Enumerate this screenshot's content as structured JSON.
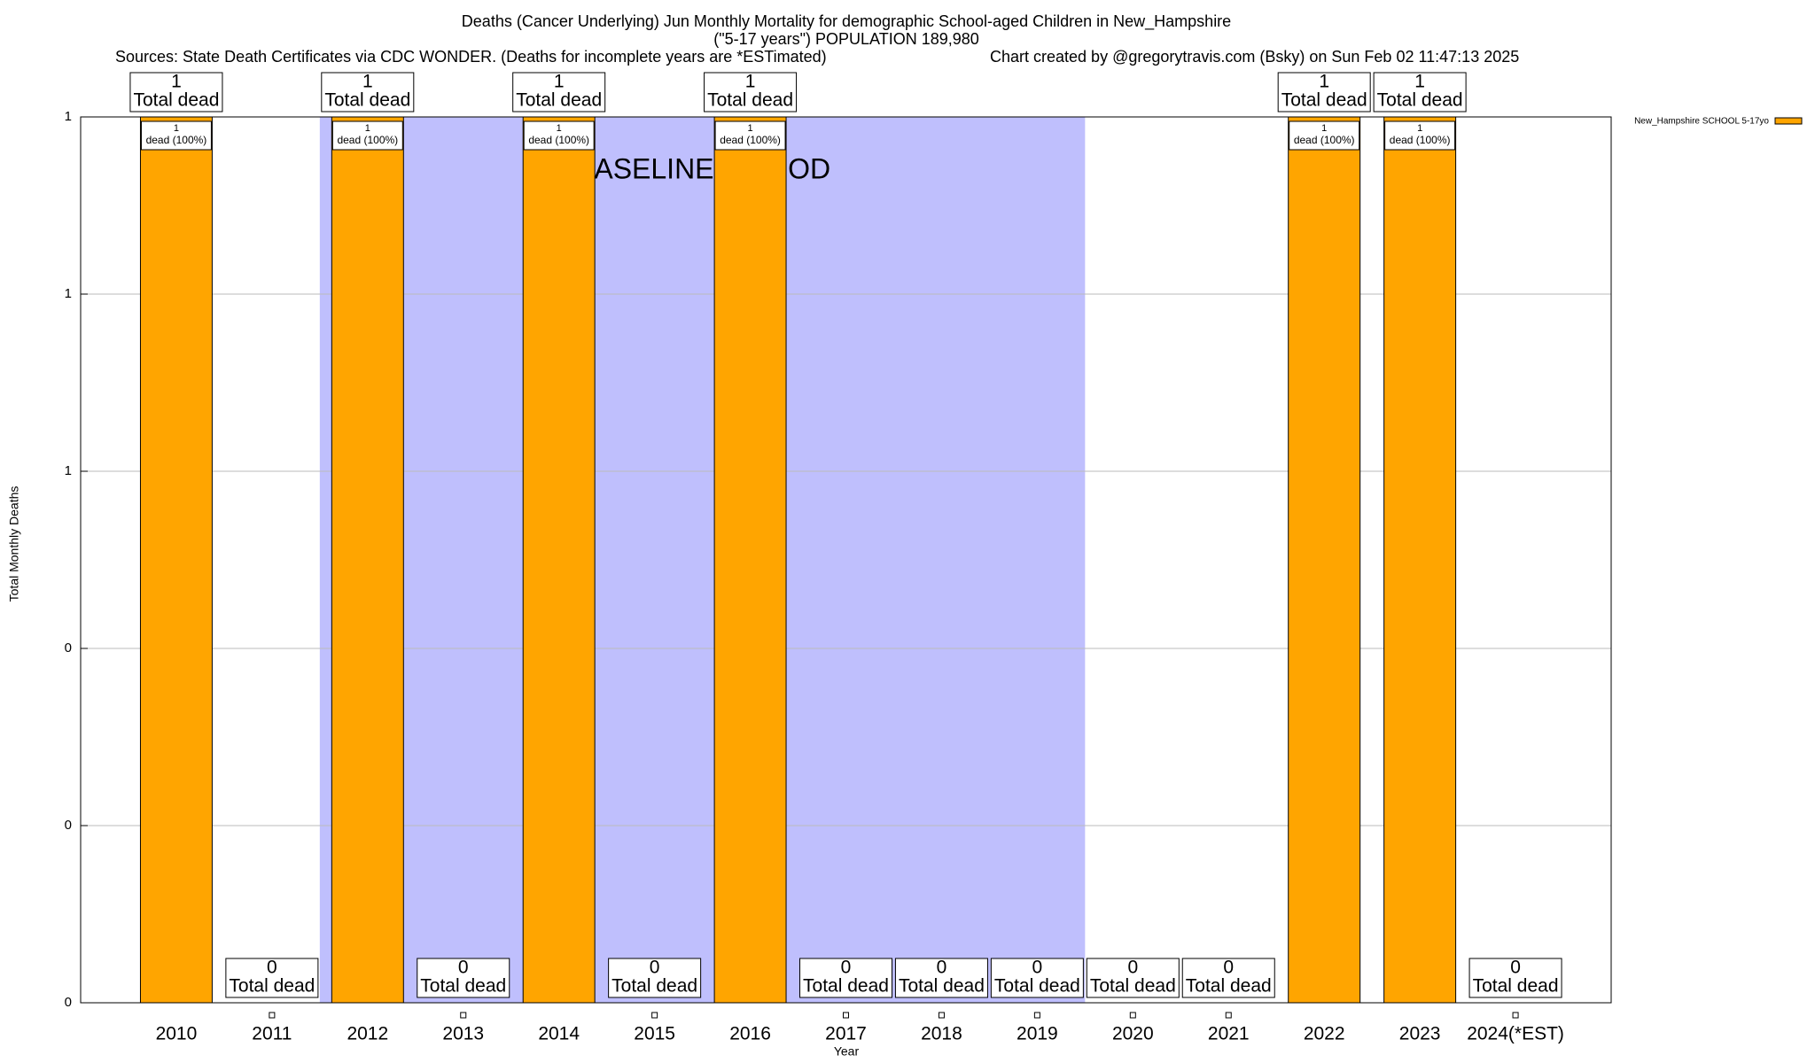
{
  "chart_data": {
    "type": "bar",
    "title": "Deaths (Cancer Underlying) Jun Monthly Mortality for demographic School-aged Children in New_Hampshire",
    "subtitle": "(\"5-17 years\") POPULATION 189,980",
    "source": "Sources: State Death Certificates via CDC WONDER. (Deaths for incomplete years are *ESTimated)",
    "credit": "Chart created by @gregorytravis.com (Bsky) on Sun Feb 02 11:47:13 2025",
    "xlabel": "Year",
    "ylabel": "Total Monthly Deaths",
    "categories": [
      "2010",
      "2011",
      "2012",
      "2013",
      "2014",
      "2015",
      "2016",
      "2017",
      "2018",
      "2019",
      "2020",
      "2021",
      "2022",
      "2023",
      "2024(*EST)"
    ],
    "series": [
      {
        "name": "New_Hampshire SCHOOL 5-17yo",
        "color": "#ffa500",
        "values": [
          1,
          0,
          1,
          0,
          1,
          0,
          1,
          0,
          0,
          0,
          0,
          0,
          1,
          1,
          0
        ],
        "share_labels": [
          "dead (100%)",
          null,
          "dead (100%)",
          null,
          "dead (100%)",
          null,
          "dead (100%)",
          null,
          null,
          null,
          null,
          null,
          "dead (100%)",
          "dead (100%)",
          null
        ]
      }
    ],
    "total_label": "Total dead",
    "baseline": {
      "label": "BASELINE PERIOD",
      "start": "2012",
      "end": "2019",
      "color": "#bfbffd"
    },
    "ylim": [
      0,
      1
    ],
    "yticks": [
      {
        "value": 0,
        "label": "0"
      },
      {
        "value": 0.2,
        "label": "0"
      },
      {
        "value": 0.4,
        "label": "0"
      },
      {
        "value": 0.6,
        "label": "1"
      },
      {
        "value": 0.8,
        "label": "1"
      },
      {
        "value": 1,
        "label": "1"
      }
    ],
    "grid": true,
    "legend": "top-right"
  }
}
